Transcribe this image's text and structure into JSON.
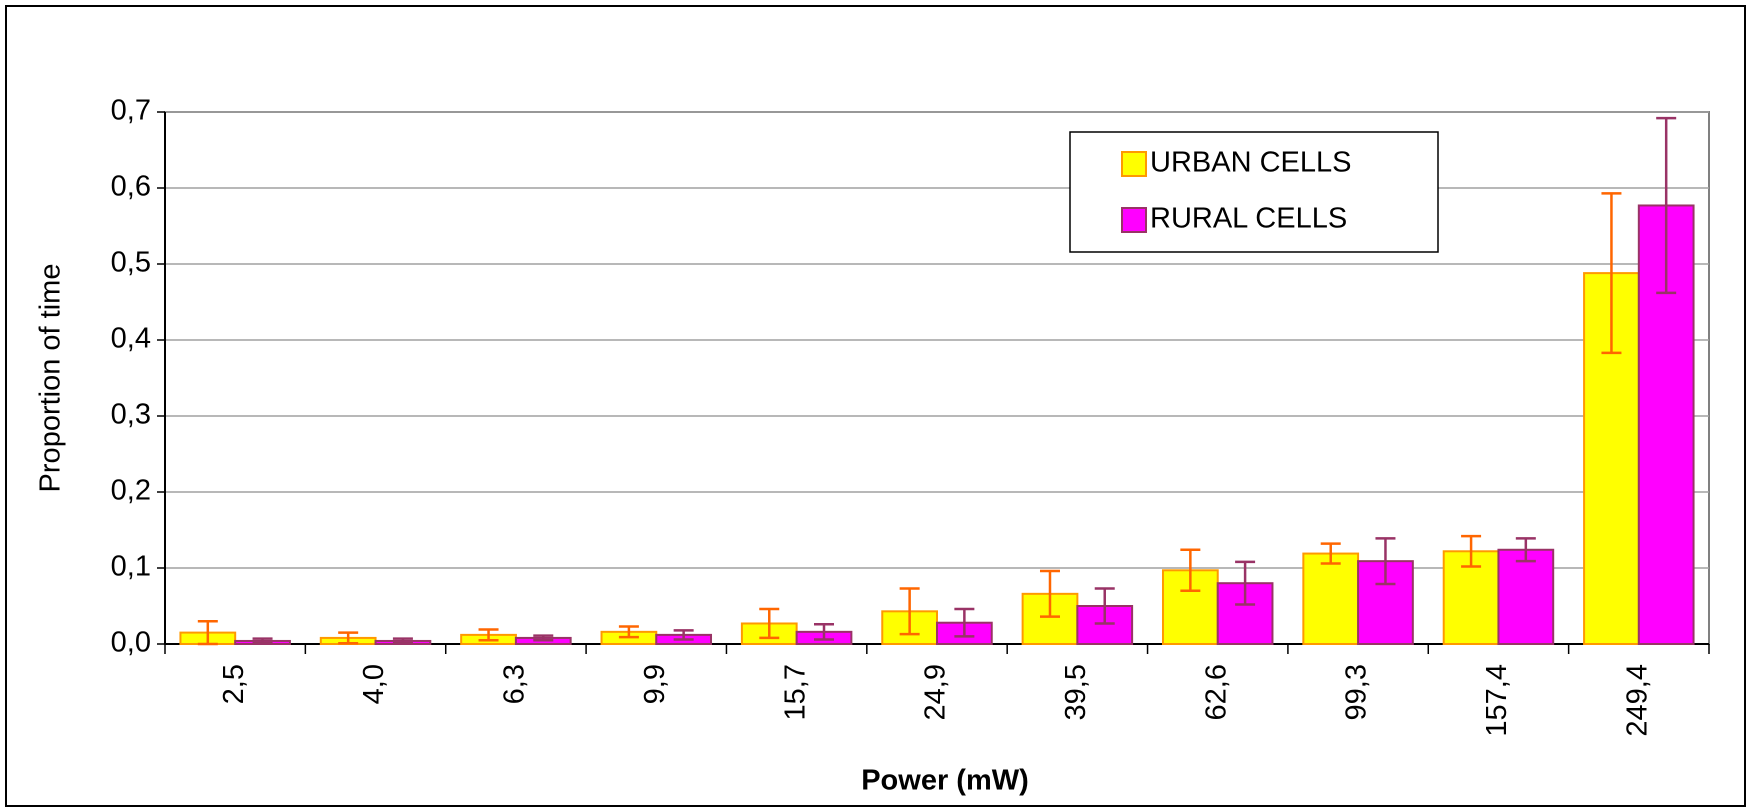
{
  "chart_data": {
    "type": "bar",
    "xlabel": "Power (mW)",
    "ylabel": "Proportion of time",
    "categories": [
      "2,5",
      "4,0",
      "6,3",
      "9,9",
      "15,7",
      "24,9",
      "39,5",
      "62,6",
      "99,3",
      "157,4",
      "249,4"
    ],
    "series": [
      {
        "name": "URBAN CELLS",
        "color": "#ffff00",
        "edge": "#ff9900",
        "error_color": "#ff6600",
        "values": [
          0.015,
          0.008,
          0.012,
          0.016,
          0.027,
          0.043,
          0.066,
          0.097,
          0.119,
          0.122,
          0.488
        ],
        "errors": [
          0.015,
          0.007,
          0.007,
          0.007,
          0.019,
          0.03,
          0.03,
          0.027,
          0.013,
          0.02,
          0.105
        ]
      },
      {
        "name": "RURAL CELLS",
        "color": "#ff00ff",
        "edge": "#993366",
        "error_color": "#993366",
        "values": [
          0.004,
          0.004,
          0.008,
          0.012,
          0.016,
          0.028,
          0.05,
          0.08,
          0.109,
          0.124,
          0.577
        ],
        "errors": [
          0.003,
          0.003,
          0.003,
          0.006,
          0.01,
          0.018,
          0.023,
          0.028,
          0.03,
          0.015,
          0.115
        ]
      }
    ],
    "ylim": [
      0,
      0.7
    ],
    "yticks": [
      {
        "value": 0,
        "label": "0,0"
      },
      {
        "value": 0.1,
        "label": "0,1"
      },
      {
        "value": 0.2,
        "label": "0,2"
      },
      {
        "value": 0.3,
        "label": "0,3"
      },
      {
        "value": 0.4,
        "label": "0,4"
      },
      {
        "value": 0.5,
        "label": "0,5"
      },
      {
        "value": 0.6,
        "label": "0,6"
      },
      {
        "value": 0.7,
        "label": "0,7"
      }
    ],
    "grid": true,
    "legend": "upper right"
  }
}
